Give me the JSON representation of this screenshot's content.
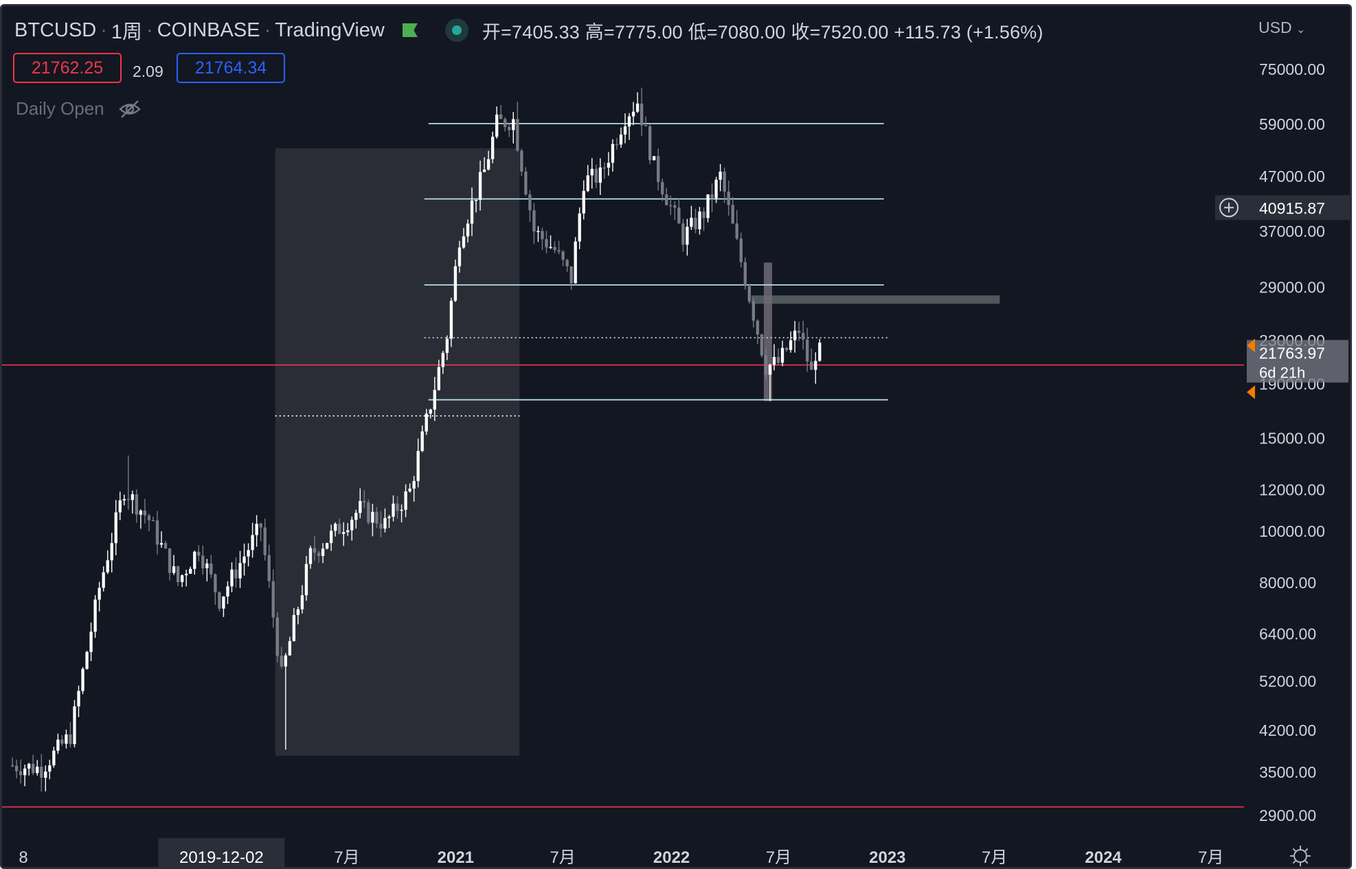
{
  "header": {
    "symbol": "BTCUSD",
    "interval": "1周",
    "exchange": "COINBASE",
    "platform": "TradingView",
    "ohlc": "开=7405.33 高=7775.00 低=7080.00 收=7520.00 +115.73 (+1.56%)"
  },
  "order_panel": {
    "bid": "21762.25",
    "spread": "2.09",
    "ask": "21764.34"
  },
  "indicator": {
    "name": "Daily Open"
  },
  "currency_menu": "USD",
  "chart_data": {
    "type": "candlestick",
    "y_scale": "log",
    "ylim": [
      2650,
      90000
    ],
    "y_ticks": [
      75000,
      59000,
      47000,
      37000,
      29000,
      23000,
      19000,
      15000,
      12000,
      10000,
      8000,
      6400,
      5200,
      4200,
      3500,
      2900
    ],
    "y_tick_labels": [
      "75000.00",
      "59000.00",
      "47000.00",
      "37000.00",
      "29000.00",
      "23000.00",
      "19000.00",
      "15000.00",
      "12000.00",
      "10000.00",
      "8000.00",
      "6400.00",
      "5200.00",
      "4200.00",
      "3500.00",
      "2900.00"
    ],
    "x_range": [
      "2018-11-26",
      "2024-08-26"
    ],
    "x_ticks": [
      {
        "date": "2019-01-01",
        "label": "8",
        "bold": false
      },
      {
        "date": "2020-07-01",
        "label": "7月",
        "bold": false
      },
      {
        "date": "2021-01-01",
        "label": "2021",
        "bold": true
      },
      {
        "date": "2021-07-01",
        "label": "7月",
        "bold": false
      },
      {
        "date": "2022-01-01",
        "label": "2022",
        "bold": true
      },
      {
        "date": "2022-07-01",
        "label": "7月",
        "bold": false
      },
      {
        "date": "2023-01-01",
        "label": "2023",
        "bold": true
      },
      {
        "date": "2023-07-01",
        "label": "7月",
        "bold": false
      },
      {
        "date": "2024-01-01",
        "label": "2024",
        "bold": true
      },
      {
        "date": "2024-07-01",
        "label": "7月",
        "bold": false
      }
    ],
    "crosshair_date_label": "2019-12-02",
    "price_waypoints": [
      [
        "2018-12-10",
        3600
      ],
      [
        "2019-02-04",
        3550
      ],
      [
        "2019-03-25",
        4100
      ],
      [
        "2019-05-13",
        7800
      ],
      [
        "2019-06-24",
        12000
      ],
      [
        "2019-08-05",
        10500
      ],
      [
        "2019-09-23",
        8000
      ],
      [
        "2019-10-28",
        9300
      ],
      [
        "2019-12-02",
        7400
      ],
      [
        "2020-02-10",
        10200
      ],
      [
        "2020-03-16",
        5300
      ],
      [
        "2020-05-04",
        9000
      ],
      [
        "2020-07-27",
        11000
      ],
      [
        "2020-09-07",
        10300
      ],
      [
        "2020-10-19",
        11900
      ],
      [
        "2020-12-21",
        23500
      ],
      [
        "2021-01-11",
        36000
      ],
      [
        "2021-02-22",
        48000
      ],
      [
        "2021-03-15",
        59000
      ],
      [
        "2021-04-12",
        60000
      ],
      [
        "2021-05-17",
        37000
      ],
      [
        "2021-06-21",
        34000
      ],
      [
        "2021-07-19",
        30000
      ],
      [
        "2021-08-09",
        46000
      ],
      [
        "2021-09-06",
        47000
      ],
      [
        "2021-10-18",
        61000
      ],
      [
        "2021-11-08",
        65000
      ],
      [
        "2021-12-06",
        49000
      ],
      [
        "2022-01-24",
        36000
      ],
      [
        "2022-02-28",
        40000
      ],
      [
        "2022-03-28",
        47000
      ],
      [
        "2022-05-09",
        30000
      ],
      [
        "2022-06-13",
        20500
      ],
      [
        "2022-07-04",
        20800
      ],
      [
        "2022-08-08",
        24000
      ],
      [
        "2022-08-29",
        19800
      ],
      [
        "2022-09-05",
        21763
      ]
    ],
    "wicks": [
      {
        "date": "2020-03-16",
        "low": 3850
      },
      {
        "date": "2021-04-12",
        "high": 64900
      },
      {
        "date": "2021-11-08",
        "high": 69000
      },
      {
        "date": "2022-06-13",
        "low": 17600
      },
      {
        "date": "2019-06-24",
        "high": 13880
      }
    ],
    "horizontal_lines": [
      {
        "price": 59000,
        "from": "2020-11-16",
        "to": "2022-12-26",
        "style": "solid",
        "color": "#b2dfe6"
      },
      {
        "price": 42500,
        "from": "2020-11-09",
        "to": "2022-12-26",
        "style": "solid",
        "color": "#b2dfe6"
      },
      {
        "price": 29200,
        "from": "2020-11-09",
        "to": "2022-12-26",
        "style": "solid",
        "color": "#b2dfe6"
      },
      {
        "price": 23200,
        "from": "2020-11-09",
        "to": "2023-01-02",
        "style": "dotted",
        "color": "#d1d4dc"
      },
      {
        "price": 17700,
        "from": "2020-11-16",
        "to": "2023-01-02",
        "style": "solid",
        "color": "#b2dfe6"
      },
      {
        "price": 16500,
        "from": "2020-03-02",
        "to": "2021-04-19",
        "style": "dotted",
        "color": "#ffffff"
      },
      {
        "price": 20600,
        "from": "2018-11-26",
        "to": "2024-08-26",
        "style": "solid",
        "color": "#f23645"
      },
      {
        "price": 3000,
        "from": "2018-11-26",
        "to": "2024-08-26",
        "style": "solid",
        "color": "#f23645"
      }
    ],
    "shaded_zones": [
      {
        "from": "2020-03-02",
        "to": "2021-04-19",
        "high": 53000,
        "low": 3750,
        "color": "#2a2d36"
      },
      {
        "from": "2022-05-16",
        "to": "2023-07-10",
        "high": 27900,
        "low": 26900,
        "color": "#5a6466"
      },
      {
        "from": "2022-06-06",
        "to": "2022-06-20",
        "high": 32200,
        "low": 17600,
        "color": "#6e6a72"
      }
    ],
    "marked_price_label": "40915.87",
    "last_price_label": "21763.97",
    "countdown_label": "6d 21h"
  },
  "colors": {
    "background": "#131722",
    "axis_text": "#d1d4dc",
    "up_candle": "#ffffff",
    "down_candle": "#787b86",
    "bid_red": "#f23645",
    "ask_blue": "#2962ff",
    "alert_orange": "#f57c00"
  }
}
